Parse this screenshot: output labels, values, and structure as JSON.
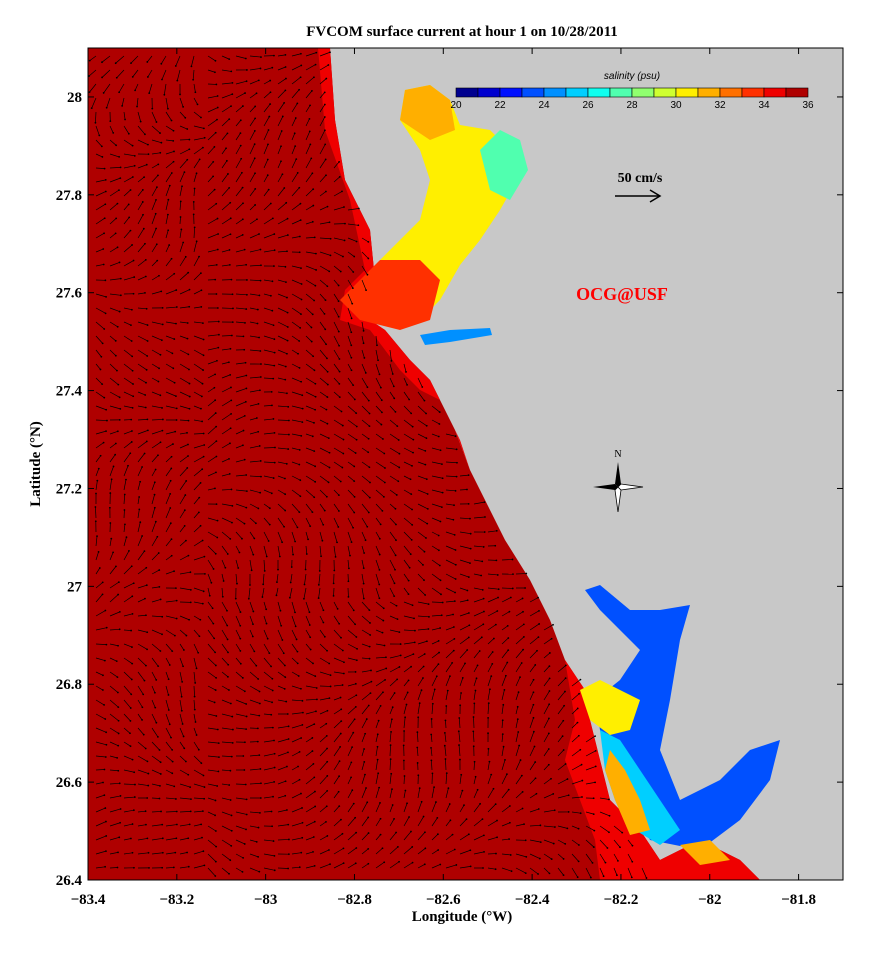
{
  "chart_data": {
    "type": "map",
    "title": "FVCOM surface current at hour 1 on 10/28/2011",
    "xlabel": "Longitude (°W)",
    "ylabel": "Latitude (°N)",
    "xlim": [
      -83.4,
      -81.7
    ],
    "ylim": [
      26.4,
      28.1
    ],
    "xticks": [
      "−83.4",
      "−83.2",
      "−83",
      "−82.8",
      "−82.6",
      "−82.4",
      "−82.2",
      "−82",
      "−81.8"
    ],
    "xtick_values": [
      -83.4,
      -83.2,
      -83.0,
      -82.8,
      -82.6,
      -82.4,
      -82.2,
      -82.0,
      -81.8
    ],
    "yticks": [
      "26.4",
      "26.6",
      "26.8",
      "27",
      "27.2",
      "27.4",
      "27.6",
      "27.8",
      "28"
    ],
    "ytick_values": [
      26.4,
      26.6,
      26.8,
      27.0,
      27.2,
      27.4,
      27.6,
      27.8,
      28.0
    ],
    "colorbar": {
      "label": "salinity (psu)",
      "range": [
        20,
        36
      ],
      "tick_labels": [
        "20",
        "22",
        "24",
        "26",
        "28",
        "30",
        "32",
        "34",
        "36"
      ],
      "colors": [
        "#00008f",
        "#0000cf",
        "#0010ff",
        "#0050ff",
        "#0090ff",
        "#00cfff",
        "#10ffef",
        "#50ffaf",
        "#90ff6f",
        "#cfff30",
        "#ffef00",
        "#ffaf00",
        "#ff7000",
        "#ff3000",
        "#ef0000",
        "#af0000"
      ]
    },
    "scale_arrow_label": "50 cm/s",
    "watermark": "OCG@USF",
    "north_label": "N",
    "colors": {
      "land": "#c8c8c8",
      "offshore_water": "#af0000",
      "shelf_water": "#ef0000",
      "watermark": "#ff0000"
    }
  }
}
